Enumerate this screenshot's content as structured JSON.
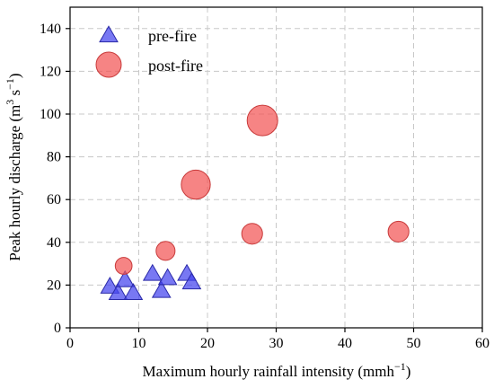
{
  "chart_data": {
    "type": "scatter",
    "title": "",
    "xlabel": "Maximum hourly rainfall intensity (mmh",
    "xlabel_sup": "−1",
    "xlabel_close": ")",
    "ylabel": "Peak hourly discharge (m",
    "ylabel_sup1": "3",
    "ylabel_mid": " s",
    "ylabel_sup2": "−1",
    "ylabel_close": ")",
    "xlim": [
      0,
      60
    ],
    "ylim": [
      0,
      150
    ],
    "x_ticks": [
      0,
      10,
      20,
      30,
      40,
      50,
      60
    ],
    "y_ticks": [
      0,
      20,
      40,
      60,
      80,
      100,
      120,
      140
    ],
    "x_tick_labels": [
      "0",
      "10",
      "20",
      "30",
      "40",
      "50",
      "60"
    ],
    "y_tick_labels": [
      "0",
      "20",
      "40",
      "60",
      "80",
      "100",
      "120",
      "140"
    ],
    "grid": true,
    "legend_position": "top-left",
    "series": [
      {
        "name": "pre-fire",
        "marker": "triangle",
        "color": "#4444ee",
        "edge_color": "#2a2aa8",
        "points": [
          {
            "x": 5.8,
            "y": 19
          },
          {
            "x": 7.0,
            "y": 16
          },
          {
            "x": 8.0,
            "y": 22
          },
          {
            "x": 9.2,
            "y": 16
          },
          {
            "x": 12.0,
            "y": 25
          },
          {
            "x": 13.3,
            "y": 17
          },
          {
            "x": 14.2,
            "y": 23
          },
          {
            "x": 17.0,
            "y": 25
          },
          {
            "x": 17.7,
            "y": 21
          }
        ]
      },
      {
        "name": "post-fire",
        "marker": "circle",
        "color": "#f25555",
        "edge_color": "#c83a3a",
        "points": [
          {
            "x": 7.8,
            "y": 29,
            "size": 0.55
          },
          {
            "x": 13.9,
            "y": 36,
            "size": 0.62
          },
          {
            "x": 18.3,
            "y": 67,
            "size": 0.95
          },
          {
            "x": 26.5,
            "y": 44,
            "size": 0.68
          },
          {
            "x": 28.0,
            "y": 97,
            "size": 1.0
          },
          {
            "x": 47.8,
            "y": 45,
            "size": 0.68
          }
        ]
      }
    ]
  }
}
